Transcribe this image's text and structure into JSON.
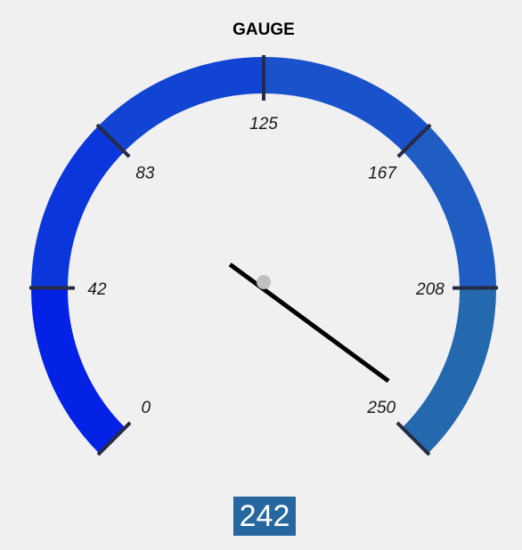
{
  "gauge": {
    "title": "GAUGE",
    "min": 0,
    "max": 250,
    "value": 242,
    "value_text": "242",
    "ticks": [
      {
        "value": 0,
        "label": "0"
      },
      {
        "value": 42,
        "label": "42"
      },
      {
        "value": 83,
        "label": "83"
      },
      {
        "value": 125,
        "label": "125"
      },
      {
        "value": 167,
        "label": "167"
      },
      {
        "value": 208,
        "label": "208"
      },
      {
        "value": 250,
        "label": "250"
      }
    ],
    "segment_colors": [
      "#0322e6",
      "#0b36db",
      "#1244d4",
      "#1a52cc",
      "#1f5dc3",
      "#2468ad"
    ],
    "tick_color": "#272b44",
    "needle_color": "#000000",
    "hub_color": "#c0c0c0",
    "value_box_color": "#26679f"
  }
}
